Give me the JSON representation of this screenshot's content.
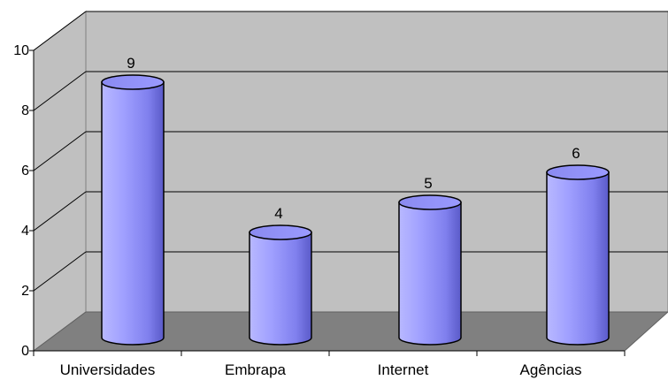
{
  "chart_data": {
    "type": "bar",
    "style": "3d-cylinder",
    "categories": [
      "Universidades",
      "Embrapa",
      "Internet",
      "Agências"
    ],
    "values": [
      9,
      4,
      5,
      6
    ],
    "data_labels": [
      "9",
      "4",
      "5",
      "6"
    ],
    "y_ticks": [
      "0",
      "2",
      "4",
      "6",
      "8",
      "10"
    ],
    "ylim": [
      0,
      10
    ],
    "grid": true,
    "legend": "none",
    "colors": {
      "bar": "#9999ff",
      "bar_dark": "#5555cc",
      "bar_light": "#c8c8ff",
      "wall": "#c0c0c0",
      "floor": "#808080",
      "grid": "#000000"
    }
  }
}
